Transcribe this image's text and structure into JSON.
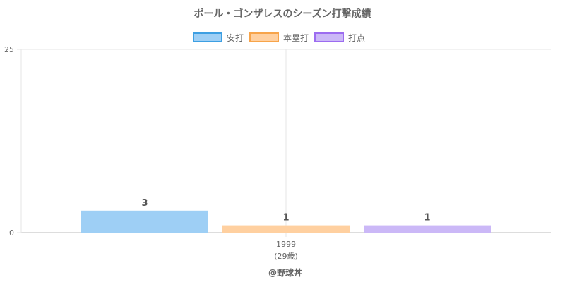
{
  "chart_data": {
    "type": "bar",
    "title": "ポール・ゴンザレスのシーズン打撃成績",
    "categories": [
      "1999"
    ],
    "category_sublabels": [
      "(29歳)"
    ],
    "series": [
      {
        "name": "安打",
        "values": [
          3
        ],
        "color": "#9ecff5",
        "border": "#3d9fe2"
      },
      {
        "name": "本塁打",
        "values": [
          1
        ],
        "color": "#ffd0a0",
        "border": "#f7a44a"
      },
      {
        "name": "打点",
        "values": [
          1
        ],
        "color": "#cbb8f7",
        "border": "#9c6cf0"
      }
    ],
    "ylim": [
      0,
      25
    ],
    "yticks": [
      0,
      25
    ],
    "grid": true,
    "legend_position": "top",
    "xlabel": "",
    "ylabel": ""
  },
  "footer": "@野球丼"
}
